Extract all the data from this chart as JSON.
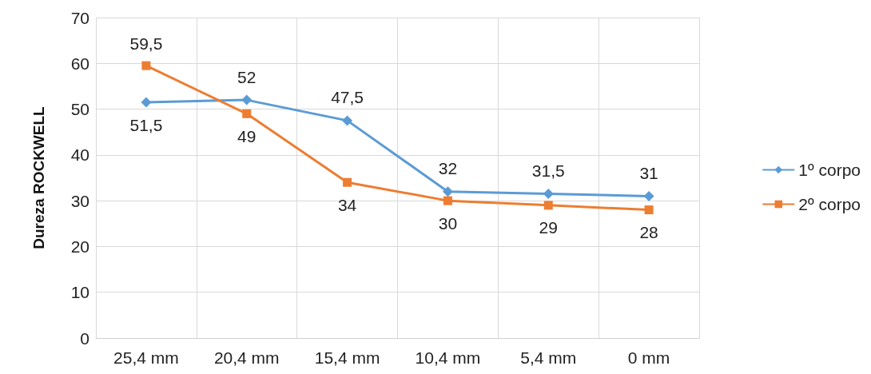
{
  "chart_data": {
    "type": "line",
    "ylabel": "Dureza ROCKWELL",
    "categories": [
      "25,4 mm",
      "20,4 mm",
      "15,4 mm",
      "10,4 mm",
      "5,4 mm",
      "0 mm"
    ],
    "series": [
      {
        "name": "1º corpo",
        "color": "#5b9bd5",
        "marker": "diamond",
        "values": [
          51.5,
          52,
          47.5,
          32,
          31.5,
          31
        ],
        "value_labels": [
          "51,5",
          "52",
          "47,5",
          "32",
          "31,5",
          "31"
        ]
      },
      {
        "name": "2º corpo",
        "color": "#ed7d31",
        "marker": "square",
        "values": [
          59.5,
          49,
          34,
          30,
          29,
          28
        ],
        "value_labels": [
          "59,5",
          "49",
          "34",
          "30",
          "29",
          "28"
        ]
      }
    ],
    "ylim": [
      0,
      70
    ],
    "yticks": [
      0,
      10,
      20,
      30,
      40,
      50,
      60,
      70
    ],
    "grid": true,
    "legend": "right"
  }
}
